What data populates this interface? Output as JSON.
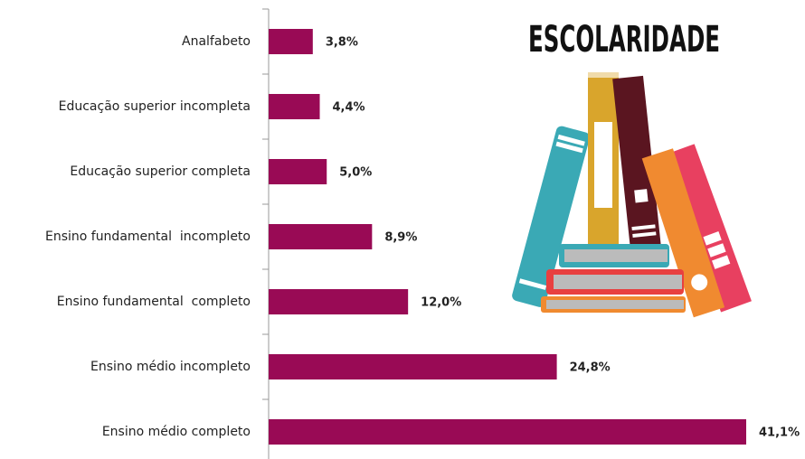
{
  "chart_data": {
    "type": "bar",
    "orientation": "horizontal",
    "title": "ESCOLARIDADE",
    "categories": [
      "Analfabeto",
      "Educação superior incompleta",
      "Educação superior completa",
      "Ensino fundamental  incompleto",
      "Ensino fundamental  completo",
      "Ensino médio incompleto",
      "Ensino médio completo"
    ],
    "values": [
      3.8,
      4.4,
      5.0,
      8.9,
      12.0,
      24.8,
      41.1
    ],
    "value_labels": [
      "3,8%",
      "4,4%",
      "5,0%",
      "8,9%",
      "12,0%",
      "24,8%",
      "41,1%"
    ],
    "color": "#990a55"
  }
}
